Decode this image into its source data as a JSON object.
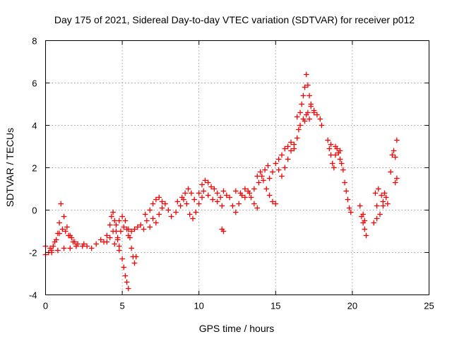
{
  "chart_data": {
    "type": "scatter",
    "title": "Day 175 of 2021, Sidereal Day-to-day VTEC variation (SDTVAR) for receiver p012",
    "xlabel": "GPS time / hours",
    "ylabel": "SDTVAR / TECUs",
    "xlim": [
      0,
      25
    ],
    "ylim": [
      -4,
      8
    ],
    "xticks": [
      "0",
      "5",
      "10",
      "15",
      "20",
      "25"
    ],
    "yticks": [
      "-4",
      "-2",
      "0",
      "2",
      "4",
      "6",
      "8"
    ],
    "grid": true,
    "legend": "none",
    "marker": "plus",
    "series_color": "#ff0000",
    "series": [
      {
        "name": "SDTVAR",
        "points": [
          [
            0.0,
            -1.7
          ],
          [
            0.2,
            -2.0
          ],
          [
            0.4,
            -1.9
          ],
          [
            0.6,
            -1.5
          ],
          [
            0.8,
            -1.1
          ],
          [
            0.9,
            -0.6
          ],
          [
            1.0,
            0.3
          ],
          [
            1.2,
            -0.3
          ],
          [
            1.4,
            -0.8
          ],
          [
            1.6,
            -1.2
          ],
          [
            1.8,
            -1.5
          ],
          [
            2.0,
            -1.7
          ],
          [
            0.3,
            -1.8
          ],
          [
            0.5,
            -1.7
          ],
          [
            0.7,
            -1.4
          ],
          [
            0.9,
            -1.1
          ],
          [
            1.1,
            -0.9
          ],
          [
            1.3,
            -1.0
          ],
          [
            1.5,
            -1.2
          ],
          [
            1.7,
            -1.3
          ],
          [
            1.9,
            -1.5
          ],
          [
            2.1,
            -1.6
          ],
          [
            2.4,
            -1.7
          ],
          [
            2.7,
            -1.7
          ],
          [
            0.0,
            -2.1
          ],
          [
            0.4,
            -2.0
          ],
          [
            0.8,
            -1.9
          ],
          [
            1.2,
            -1.8
          ],
          [
            1.6,
            -1.8
          ],
          [
            2.0,
            -1.7
          ],
          [
            2.5,
            -1.6
          ],
          [
            3.0,
            -1.8
          ],
          [
            3.3,
            -1.6
          ],
          [
            3.6,
            -1.4
          ],
          [
            3.8,
            -1.5
          ],
          [
            4.0,
            -1.2
          ],
          [
            4.2,
            -0.7
          ],
          [
            4.3,
            -0.3
          ],
          [
            4.4,
            -0.1
          ],
          [
            4.5,
            -0.5
          ],
          [
            4.6,
            -1.0
          ],
          [
            4.7,
            -1.4
          ],
          [
            4.8,
            -1.7
          ],
          [
            4.0,
            -1.5
          ],
          [
            4.2,
            -1.3
          ],
          [
            4.4,
            -1.0
          ],
          [
            4.6,
            -0.7
          ],
          [
            4.8,
            -0.5
          ],
          [
            5.0,
            -0.3
          ],
          [
            5.2,
            -0.5
          ],
          [
            5.4,
            -0.9
          ],
          [
            5.5,
            -1.3
          ],
          [
            5.6,
            -1.8
          ],
          [
            5.7,
            -2.2
          ],
          [
            4.5,
            -1.6
          ],
          [
            4.7,
            -1.3
          ],
          [
            4.9,
            -1.0
          ],
          [
            5.1,
            -0.8
          ],
          [
            5.3,
            -0.9
          ],
          [
            5.4,
            -1.2
          ],
          [
            5.6,
            -1.0
          ],
          [
            5.8,
            -0.9
          ],
          [
            6.0,
            -0.8
          ],
          [
            4.8,
            -1.9
          ],
          [
            5.0,
            -2.3
          ],
          [
            5.1,
            -2.7
          ],
          [
            5.2,
            -3.1
          ],
          [
            5.3,
            -3.4
          ],
          [
            5.4,
            -3.7
          ],
          [
            5.8,
            -2.5
          ],
          [
            5.9,
            -2.2
          ],
          [
            6.2,
            -0.7
          ],
          [
            6.4,
            -0.9
          ],
          [
            6.6,
            -0.5
          ],
          [
            6.8,
            -0.8
          ],
          [
            7.0,
            -0.4
          ],
          [
            7.2,
            -0.6
          ],
          [
            7.4,
            -0.2
          ],
          [
            7.6,
            0.1
          ],
          [
            7.8,
            0.3
          ],
          [
            8.0,
            0.0
          ],
          [
            6.5,
            -0.2
          ],
          [
            6.8,
            0.0
          ],
          [
            7.0,
            0.3
          ],
          [
            7.2,
            0.5
          ],
          [
            7.4,
            0.6
          ],
          [
            7.6,
            0.4
          ],
          [
            8.2,
            -0.3
          ],
          [
            8.5,
            -0.1
          ],
          [
            8.8,
            0.2
          ],
          [
            9.0,
            0.5
          ],
          [
            9.2,
            0.3
          ],
          [
            9.4,
            -0.2
          ],
          [
            9.6,
            -0.4
          ],
          [
            9.8,
            -0.1
          ],
          [
            10.0,
            0.3
          ],
          [
            10.2,
            0.6
          ],
          [
            8.6,
            0.4
          ],
          [
            8.9,
            0.6
          ],
          [
            9.1,
            0.8
          ],
          [
            9.3,
            1.0
          ],
          [
            9.5,
            0.8
          ],
          [
            9.7,
            0.5
          ],
          [
            10.2,
            1.2
          ],
          [
            10.4,
            1.4
          ],
          [
            10.6,
            1.3
          ],
          [
            10.8,
            1.1
          ],
          [
            11.0,
            1.0
          ],
          [
            11.2,
            0.8
          ],
          [
            11.4,
            0.6
          ],
          [
            11.6,
            0.9
          ],
          [
            11.8,
            0.7
          ],
          [
            10.0,
            0.8
          ],
          [
            10.3,
            0.9
          ],
          [
            10.6,
            0.7
          ],
          [
            10.9,
            0.5
          ],
          [
            11.2,
            0.4
          ],
          [
            11.5,
            0.2
          ],
          [
            11.5,
            -0.9
          ],
          [
            11.6,
            -1.0
          ],
          [
            12.0,
            0.6
          ],
          [
            12.2,
            0.2
          ],
          [
            12.4,
            -0.1
          ],
          [
            12.6,
            0.3
          ],
          [
            12.8,
            0.7
          ],
          [
            13.0,
            1.0
          ],
          [
            13.2,
            0.9
          ],
          [
            13.4,
            0.6
          ],
          [
            13.6,
            0.3
          ],
          [
            13.8,
            0.1
          ],
          [
            12.4,
            0.9
          ],
          [
            12.7,
            0.8
          ],
          [
            13.0,
            0.6
          ],
          [
            13.3,
            0.8
          ],
          [
            13.6,
            1.0
          ],
          [
            13.9,
            1.3
          ],
          [
            14.1,
            1.6
          ],
          [
            14.3,
            1.9
          ],
          [
            14.5,
            2.1
          ],
          [
            13.8,
            1.6
          ],
          [
            14.0,
            1.8
          ],
          [
            14.2,
            1.4
          ],
          [
            14.4,
            1.0
          ],
          [
            14.6,
            0.7
          ],
          [
            14.8,
            0.4
          ],
          [
            15.0,
            0.3
          ],
          [
            14.6,
            1.5
          ],
          [
            14.8,
            1.8
          ],
          [
            15.0,
            2.2
          ],
          [
            15.2,
            2.4
          ],
          [
            15.4,
            2.6
          ],
          [
            15.6,
            2.9
          ],
          [
            15.8,
            3.0
          ],
          [
            16.0,
            3.2
          ],
          [
            16.2,
            2.9
          ],
          [
            15.2,
            1.9
          ],
          [
            15.4,
            1.6
          ],
          [
            15.6,
            2.0
          ],
          [
            15.8,
            2.4
          ],
          [
            16.0,
            2.8
          ],
          [
            16.2,
            3.1
          ],
          [
            16.4,
            3.4
          ],
          [
            16.5,
            3.8
          ],
          [
            16.4,
            4.4
          ],
          [
            16.6,
            4.6
          ],
          [
            16.7,
            5.0
          ],
          [
            16.8,
            5.4
          ],
          [
            16.9,
            5.8
          ],
          [
            17.0,
            6.4
          ],
          [
            17.1,
            5.9
          ],
          [
            17.2,
            5.4
          ],
          [
            17.3,
            5.0
          ],
          [
            17.5,
            4.6
          ],
          [
            16.9,
            4.2
          ],
          [
            17.1,
            4.6
          ],
          [
            17.3,
            4.9
          ],
          [
            17.5,
            4.7
          ],
          [
            17.7,
            4.5
          ],
          [
            17.9,
            4.3
          ],
          [
            18.0,
            4.0
          ],
          [
            16.6,
            4.0
          ],
          [
            16.8,
            4.3
          ],
          [
            17.0,
            4.5
          ],
          [
            17.2,
            4.3
          ],
          [
            18.4,
            3.3
          ],
          [
            18.5,
            2.9
          ],
          [
            18.6,
            2.6
          ],
          [
            18.7,
            2.2
          ],
          [
            18.8,
            2.0
          ],
          [
            18.9,
            2.6
          ],
          [
            19.0,
            2.9
          ],
          [
            19.1,
            2.7
          ],
          [
            19.2,
            2.4
          ],
          [
            19.3,
            2.2
          ],
          [
            18.6,
            3.1
          ],
          [
            18.9,
            3.0
          ],
          [
            19.2,
            2.8
          ],
          [
            19.4,
            1.9
          ],
          [
            19.5,
            1.3
          ],
          [
            19.6,
            0.9
          ],
          [
            19.7,
            0.5
          ],
          [
            19.8,
            0.1
          ],
          [
            19.9,
            -0.1
          ],
          [
            20.5,
            0.2
          ],
          [
            20.6,
            -0.3
          ],
          [
            20.7,
            -0.6
          ],
          [
            20.8,
            -0.9
          ],
          [
            20.9,
            -1.2
          ],
          [
            20.7,
            -0.2
          ],
          [
            20.8,
            -0.5
          ],
          [
            21.4,
            -0.6
          ],
          [
            21.6,
            -0.4
          ],
          [
            21.8,
            -0.2
          ],
          [
            22.0,
            0.2
          ],
          [
            22.2,
            0.6
          ],
          [
            22.3,
            0.3
          ],
          [
            22.1,
            0.8
          ],
          [
            21.5,
            0.8
          ],
          [
            21.7,
            1.0
          ],
          [
            21.9,
            0.7
          ],
          [
            22.0,
            0.4
          ],
          [
            21.6,
            0.2
          ],
          [
            22.5,
            1.8
          ],
          [
            22.6,
            2.6
          ],
          [
            22.7,
            2.8
          ],
          [
            22.8,
            2.5
          ],
          [
            22.9,
            3.3
          ],
          [
            22.8,
            1.3
          ],
          [
            22.9,
            1.5
          ]
        ]
      }
    ]
  }
}
